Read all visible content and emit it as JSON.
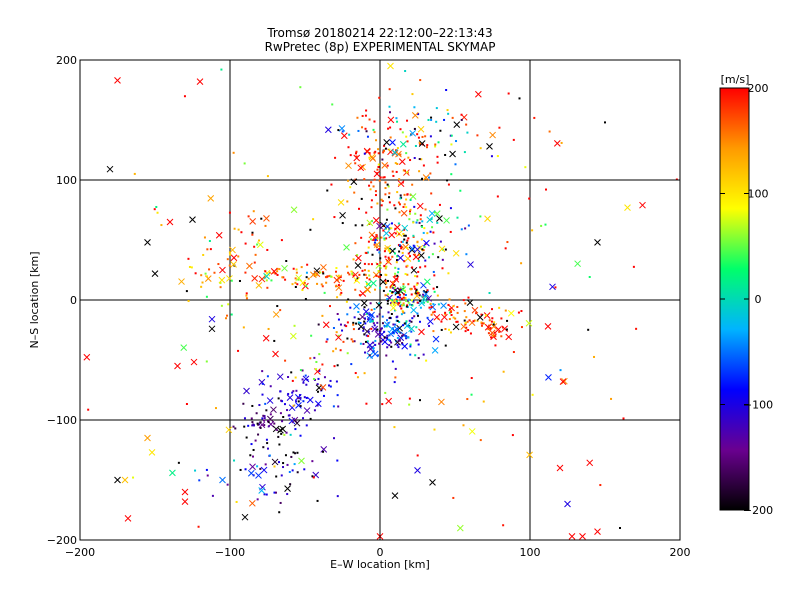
{
  "chart_data": {
    "type": "scatter",
    "title": "Tromsø 20180214 22:12:00–22:13:43",
    "subtitle": "RwPretec (8p) EXPERIMENTAL SKYMAP",
    "xlabel": "E–W location [km]",
    "ylabel": "N–S location [km]",
    "xlim": [
      -200,
      200
    ],
    "ylim": [
      -200,
      200
    ],
    "xticks": [
      -200,
      -100,
      0,
      100,
      200
    ],
    "yticks": [
      -200,
      -100,
      0,
      100,
      200
    ],
    "xtick_labels": [
      "−200",
      "−100",
      "0",
      "100",
      "200"
    ],
    "ytick_labels": [
      "−200",
      "−100",
      "0",
      "100",
      "200"
    ],
    "grid": true,
    "colorbar": {
      "label": "[m/s]",
      "min": -200,
      "max": 200,
      "ticks": [
        200,
        100,
        0,
        -100,
        -200
      ],
      "tick_labels": [
        "200",
        "100",
        "0",
        "−100",
        "−200"
      ],
      "colormap": [
        "#000000",
        "#6a0090",
        "#0000ff",
        "#00b4ff",
        "#00ff6a",
        "#ffff00",
        "#ff9a00",
        "#ff0000"
      ]
    },
    "markers": {
      "small": "dot",
      "large": "cross"
    },
    "clusters": [
      {
        "cx": 5,
        "cy": -25,
        "sx": 14,
        "sy": 14,
        "vel": -90,
        "vsd": 55,
        "n": 200
      },
      {
        "cx": 20,
        "cy": 2,
        "sx": 10,
        "sy": 6,
        "vel": 40,
        "vsd": 150,
        "n": 90
      },
      {
        "cx": 55,
        "cy": -15,
        "sx": 15,
        "sy": 7,
        "vel": 170,
        "vsd": 50,
        "n": 70
      },
      {
        "cx": 80,
        "cy": -28,
        "sx": 8,
        "sy": 6,
        "vel": 190,
        "vsd": 30,
        "n": 25
      },
      {
        "cx": 10,
        "cy": 35,
        "sx": 14,
        "sy": 18,
        "vel": 150,
        "vsd": 80,
        "n": 160
      },
      {
        "cx": -40,
        "cy": 18,
        "sx": 28,
        "sy": 6,
        "vel": 160,
        "vsd": 60,
        "n": 110
      },
      {
        "cx": -100,
        "cy": 30,
        "sx": 15,
        "sy": 25,
        "vel": 140,
        "vsd": 70,
        "n": 60
      },
      {
        "cx": 5,
        "cy": 100,
        "sx": 14,
        "sy": 20,
        "vel": 180,
        "vsd": 40,
        "n": 130
      },
      {
        "cx": 25,
        "cy": 60,
        "sx": 16,
        "sy": 20,
        "vel": -30,
        "vsd": 80,
        "n": 80
      },
      {
        "cx": 25,
        "cy": 140,
        "sx": 25,
        "sy": 14,
        "vel": 60,
        "vsd": 160,
        "n": 90
      },
      {
        "cx": -55,
        "cy": -80,
        "sx": 14,
        "sy": 14,
        "vel": -110,
        "vsd": 25,
        "n": 80
      },
      {
        "cx": -80,
        "cy": -105,
        "sx": 10,
        "sy": 8,
        "vel": -150,
        "vsd": 30,
        "n": 45
      },
      {
        "cx": -70,
        "cy": -140,
        "sx": 25,
        "sy": 18,
        "vel": -120,
        "vsd": 70,
        "n": 70
      },
      {
        "cx": -30,
        "cy": -40,
        "sx": 14,
        "sy": 18,
        "vel": 140,
        "vsd": 80,
        "n": 40
      },
      {
        "cx": 0,
        "cy": 0,
        "sx": 110,
        "sy": 110,
        "vel": 150,
        "vsd": 90,
        "n": 170
      }
    ],
    "isolated_points": [
      {
        "x": -175,
        "y": 183,
        "v": 200,
        "m": "cross"
      },
      {
        "x": -120,
        "y": 182,
        "v": 200,
        "m": "cross"
      },
      {
        "x": -180,
        "y": 109,
        "v": -200,
        "m": "cross"
      },
      {
        "x": -155,
        "y": 48,
        "v": -200,
        "m": "cross"
      },
      {
        "x": -150,
        "y": 22,
        "v": -200,
        "m": "cross"
      },
      {
        "x": -140,
        "y": 65,
        "v": 200,
        "m": "cross"
      },
      {
        "x": -125,
        "y": 67,
        "v": -200,
        "m": "cross"
      },
      {
        "x": 145,
        "y": 48,
        "v": -200,
        "m": "cross"
      },
      {
        "x": 165,
        "y": 77,
        "v": 100,
        "m": "cross"
      },
      {
        "x": 175,
        "y": 79,
        "v": 200,
        "m": "cross"
      },
      {
        "x": 115,
        "y": 11,
        "v": -100,
        "m": "cross"
      },
      {
        "x": 73,
        "y": 128,
        "v": -200,
        "m": "cross"
      },
      {
        "x": -155,
        "y": -115,
        "v": 140,
        "m": "cross"
      },
      {
        "x": -152,
        "y": -127,
        "v": 100,
        "m": "cross"
      },
      {
        "x": -170,
        "y": -150,
        "v": 120,
        "m": "cross"
      },
      {
        "x": -175,
        "y": -150,
        "v": -200,
        "m": "cross"
      },
      {
        "x": -168,
        "y": -182,
        "v": 200,
        "m": "cross"
      },
      {
        "x": -130,
        "y": -160,
        "v": 200,
        "m": "cross"
      },
      {
        "x": -130,
        "y": -168,
        "v": 200,
        "m": "cross"
      },
      {
        "x": -135,
        "y": -55,
        "v": 200,
        "m": "cross"
      },
      {
        "x": -112,
        "y": -16,
        "v": -100,
        "m": "cross"
      },
      {
        "x": -112,
        "y": -24,
        "v": -200,
        "m": "cross"
      },
      {
        "x": -90,
        "y": -181,
        "v": -200,
        "m": "cross"
      },
      {
        "x": -105,
        "y": -150,
        "v": -50,
        "m": "cross"
      },
      {
        "x": 125,
        "y": -170,
        "v": -100,
        "m": "cross"
      },
      {
        "x": 128,
        "y": -197,
        "v": 200,
        "m": "cross"
      },
      {
        "x": 135,
        "y": -197,
        "v": 200,
        "m": "cross"
      },
      {
        "x": 145,
        "y": -193,
        "v": 200,
        "m": "cross"
      },
      {
        "x": 120,
        "y": -140,
        "v": 200,
        "m": "cross"
      },
      {
        "x": 122,
        "y": -68,
        "v": 200,
        "m": "cross"
      },
      {
        "x": 112,
        "y": -22,
        "v": 200,
        "m": "cross"
      },
      {
        "x": 10,
        "y": -163,
        "v": -200,
        "m": "cross"
      },
      {
        "x": 35,
        "y": -152,
        "v": -200,
        "m": "cross"
      },
      {
        "x": 25,
        "y": -142,
        "v": -100,
        "m": "cross"
      },
      {
        "x": 0,
        "y": -197,
        "v": 200,
        "m": "cross"
      },
      {
        "x": 7,
        "y": 195,
        "v": 100,
        "m": "cross"
      },
      {
        "x": 93,
        "y": 168,
        "v": -200,
        "m": "dot"
      },
      {
        "x": 150,
        "y": 148,
        "v": -200,
        "m": "dot"
      },
      {
        "x": 160,
        "y": -190,
        "v": -200,
        "m": "dot"
      }
    ]
  }
}
